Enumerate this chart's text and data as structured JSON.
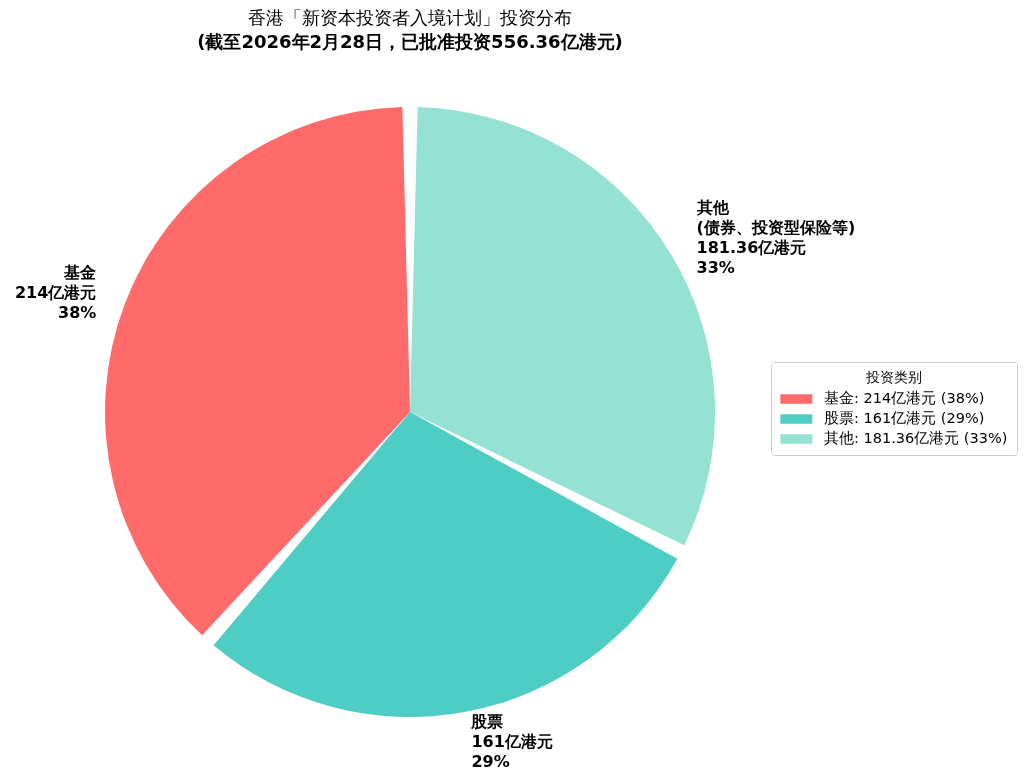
{
  "chart_data": {
    "type": "pie",
    "title": "香港「新资本投资者入境计划」投资分布",
    "subtitle": "(截至2026年2月28日，已批准投资556.36亿港元)",
    "legend_title": "投资类别",
    "categories": [
      "基金: 214亿港元 (38%)",
      "股票: 161亿港元 (29%)",
      "其他: 181.36亿港元 (33%)"
    ],
    "values": [
      214,
      161,
      181.36
    ],
    "colors": [
      "#ff6b6b",
      "#4ecdc4",
      "#95e1d3"
    ],
    "value_labels": [
      "基金\n214亿港元\n38%",
      "股票\n161亿港元\n29%",
      "其他\n(债券、投资型保险等)\n181.36亿港元\n33%"
    ],
    "legend": "right"
  }
}
